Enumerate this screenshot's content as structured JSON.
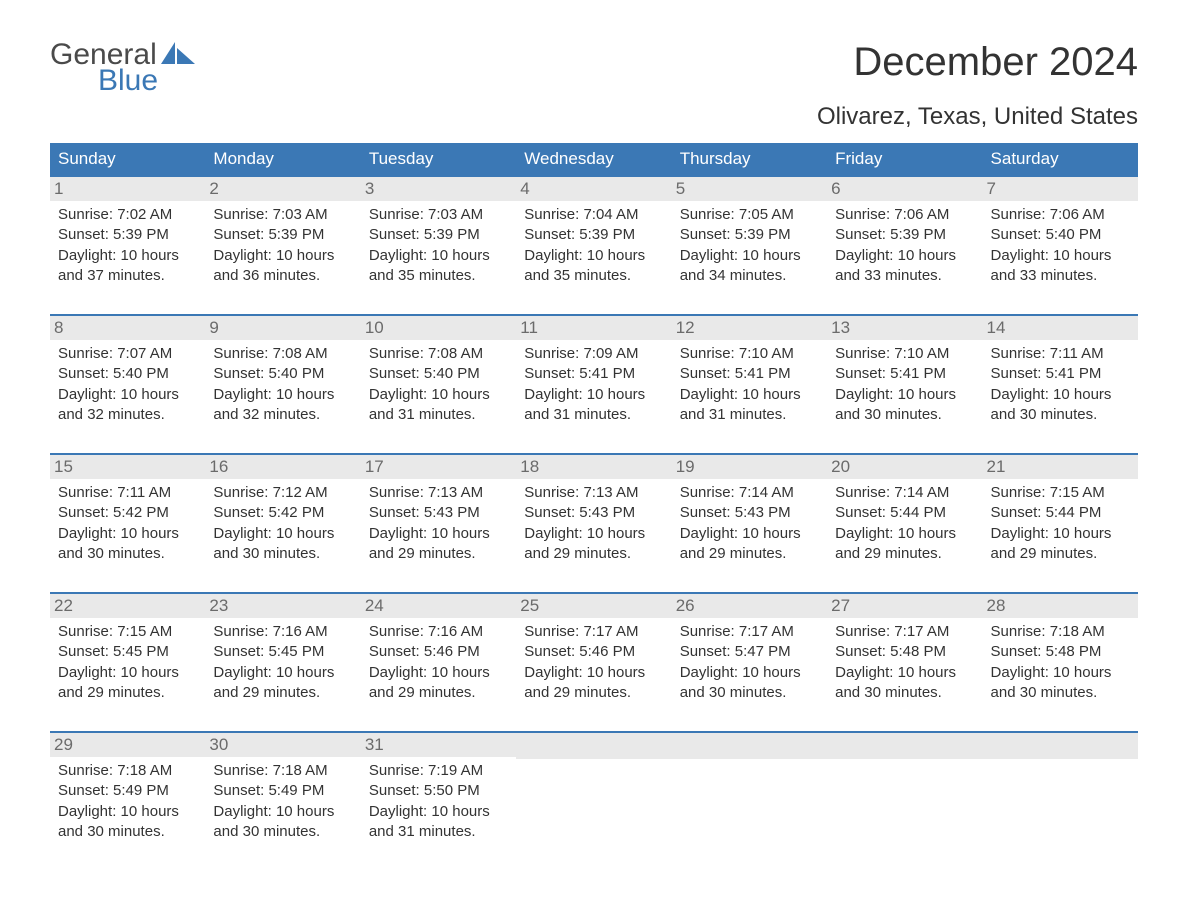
{
  "logo": {
    "text1": "General",
    "text2": "Blue",
    "sail_color": "#3b78b5"
  },
  "title": "December 2024",
  "location": "Olivarez, Texas, United States",
  "colors": {
    "header_bg": "#3b78b5",
    "header_text": "#ffffff",
    "daynum_bg": "#e9e9e9",
    "daynum_text": "#6b6b6b",
    "body_text": "#333333",
    "row_divider": "#3b78b5",
    "page_bg": "#ffffff"
  },
  "typography": {
    "title_fontsize": 40,
    "location_fontsize": 24,
    "header_fontsize": 17,
    "cell_fontsize": 15,
    "daynum_fontsize": 17
  },
  "dayHeaders": [
    "Sunday",
    "Monday",
    "Tuesday",
    "Wednesday",
    "Thursday",
    "Friday",
    "Saturday"
  ],
  "labels": {
    "sunrise": "Sunrise: ",
    "sunset": "Sunset: ",
    "daylight": "Daylight: "
  },
  "weeks": [
    [
      {
        "n": "1",
        "sunrise": "7:02 AM",
        "sunset": "5:39 PM",
        "daylight": "10 hours and 37 minutes."
      },
      {
        "n": "2",
        "sunrise": "7:03 AM",
        "sunset": "5:39 PM",
        "daylight": "10 hours and 36 minutes."
      },
      {
        "n": "3",
        "sunrise": "7:03 AM",
        "sunset": "5:39 PM",
        "daylight": "10 hours and 35 minutes."
      },
      {
        "n": "4",
        "sunrise": "7:04 AM",
        "sunset": "5:39 PM",
        "daylight": "10 hours and 35 minutes."
      },
      {
        "n": "5",
        "sunrise": "7:05 AM",
        "sunset": "5:39 PM",
        "daylight": "10 hours and 34 minutes."
      },
      {
        "n": "6",
        "sunrise": "7:06 AM",
        "sunset": "5:39 PM",
        "daylight": "10 hours and 33 minutes."
      },
      {
        "n": "7",
        "sunrise": "7:06 AM",
        "sunset": "5:40 PM",
        "daylight": "10 hours and 33 minutes."
      }
    ],
    [
      {
        "n": "8",
        "sunrise": "7:07 AM",
        "sunset": "5:40 PM",
        "daylight": "10 hours and 32 minutes."
      },
      {
        "n": "9",
        "sunrise": "7:08 AM",
        "sunset": "5:40 PM",
        "daylight": "10 hours and 32 minutes."
      },
      {
        "n": "10",
        "sunrise": "7:08 AM",
        "sunset": "5:40 PM",
        "daylight": "10 hours and 31 minutes."
      },
      {
        "n": "11",
        "sunrise": "7:09 AM",
        "sunset": "5:41 PM",
        "daylight": "10 hours and 31 minutes."
      },
      {
        "n": "12",
        "sunrise": "7:10 AM",
        "sunset": "5:41 PM",
        "daylight": "10 hours and 31 minutes."
      },
      {
        "n": "13",
        "sunrise": "7:10 AM",
        "sunset": "5:41 PM",
        "daylight": "10 hours and 30 minutes."
      },
      {
        "n": "14",
        "sunrise": "7:11 AM",
        "sunset": "5:41 PM",
        "daylight": "10 hours and 30 minutes."
      }
    ],
    [
      {
        "n": "15",
        "sunrise": "7:11 AM",
        "sunset": "5:42 PM",
        "daylight": "10 hours and 30 minutes."
      },
      {
        "n": "16",
        "sunrise": "7:12 AM",
        "sunset": "5:42 PM",
        "daylight": "10 hours and 30 minutes."
      },
      {
        "n": "17",
        "sunrise": "7:13 AM",
        "sunset": "5:43 PM",
        "daylight": "10 hours and 29 minutes."
      },
      {
        "n": "18",
        "sunrise": "7:13 AM",
        "sunset": "5:43 PM",
        "daylight": "10 hours and 29 minutes."
      },
      {
        "n": "19",
        "sunrise": "7:14 AM",
        "sunset": "5:43 PM",
        "daylight": "10 hours and 29 minutes."
      },
      {
        "n": "20",
        "sunrise": "7:14 AM",
        "sunset": "5:44 PM",
        "daylight": "10 hours and 29 minutes."
      },
      {
        "n": "21",
        "sunrise": "7:15 AM",
        "sunset": "5:44 PM",
        "daylight": "10 hours and 29 minutes."
      }
    ],
    [
      {
        "n": "22",
        "sunrise": "7:15 AM",
        "sunset": "5:45 PM",
        "daylight": "10 hours and 29 minutes."
      },
      {
        "n": "23",
        "sunrise": "7:16 AM",
        "sunset": "5:45 PM",
        "daylight": "10 hours and 29 minutes."
      },
      {
        "n": "24",
        "sunrise": "7:16 AM",
        "sunset": "5:46 PM",
        "daylight": "10 hours and 29 minutes."
      },
      {
        "n": "25",
        "sunrise": "7:17 AM",
        "sunset": "5:46 PM",
        "daylight": "10 hours and 29 minutes."
      },
      {
        "n": "26",
        "sunrise": "7:17 AM",
        "sunset": "5:47 PM",
        "daylight": "10 hours and 30 minutes."
      },
      {
        "n": "27",
        "sunrise": "7:17 AM",
        "sunset": "5:48 PM",
        "daylight": "10 hours and 30 minutes."
      },
      {
        "n": "28",
        "sunrise": "7:18 AM",
        "sunset": "5:48 PM",
        "daylight": "10 hours and 30 minutes."
      }
    ],
    [
      {
        "n": "29",
        "sunrise": "7:18 AM",
        "sunset": "5:49 PM",
        "daylight": "10 hours and 30 minutes."
      },
      {
        "n": "30",
        "sunrise": "7:18 AM",
        "sunset": "5:49 PM",
        "daylight": "10 hours and 30 minutes."
      },
      {
        "n": "31",
        "sunrise": "7:19 AM",
        "sunset": "5:50 PM",
        "daylight": "10 hours and 31 minutes."
      },
      null,
      null,
      null,
      null
    ]
  ]
}
